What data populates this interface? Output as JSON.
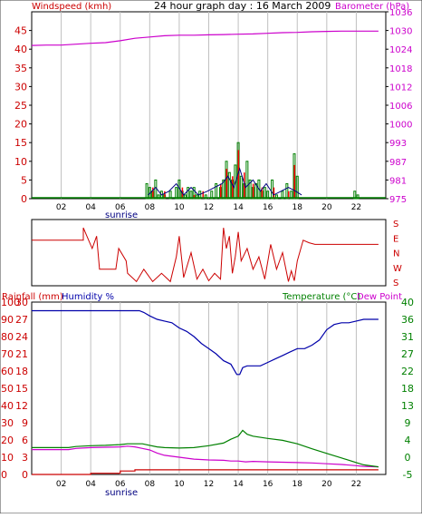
{
  "header": {
    "title": "24 hour graph day : 16 March 2009",
    "left_label": "Windspeed (kmh)",
    "right_label": "Barometer (hPa)"
  },
  "bottom_header": {
    "rain_label": "Rainfall (mm)",
    "humidity_label": "Humidity %",
    "temp_label": "Temperature (°C)",
    "dew_label": "Dew Point"
  },
  "colors": {
    "wind": "#000080",
    "gust_green": "#008000",
    "gust_red": "#ff0000",
    "baro": "#cc00cc",
    "dir": "#cc0000",
    "humidity": "#0000aa",
    "temp": "#008000",
    "dew": "#cc00cc",
    "rain": "#cc0000",
    "axis_red": "#cc0000",
    "axis_magenta": "#cc00cc",
    "axis_green": "#008000",
    "grid": "#c0c0c0"
  },
  "sunrise_label": "sunrise",
  "chart_data": [
    {
      "type": "bar",
      "name": "wind",
      "x": [
        7.8,
        8.0,
        8.2,
        8.4,
        8.6,
        8.8,
        9.0,
        9.4,
        9.8,
        10.0,
        10.2,
        10.4,
        10.6,
        10.8,
        11.0,
        11.2,
        11.4,
        11.8,
        12.2,
        12.5,
        12.8,
        13.0,
        13.2,
        13.4,
        13.6,
        13.8,
        14.0,
        14.2,
        14.4,
        14.6,
        14.8,
        15.0,
        15.2,
        15.4,
        15.6,
        15.8,
        16.0,
        16.3,
        16.6,
        17.0,
        17.3,
        17.6,
        17.8,
        18.0,
        21.9,
        22.1
      ],
      "values": [
        4,
        3,
        2,
        5,
        1,
        2,
        1,
        2,
        3,
        5,
        2,
        1,
        3,
        2,
        3,
        1,
        2,
        1,
        2,
        4,
        3,
        5,
        10,
        7,
        5,
        9,
        15,
        6,
        4,
        10,
        5,
        3,
        4,
        5,
        2,
        3,
        2,
        5,
        1,
        2,
        4,
        2,
        12,
        6,
        2,
        1
      ],
      "gust_red_x": [
        8.2,
        9.0,
        10.2,
        11.0,
        11.6,
        12.8,
        13.2,
        13.6,
        14.0,
        14.4,
        15.0,
        15.6,
        16.4,
        17.4,
        17.8
      ],
      "gust_red_values": [
        3,
        2,
        3,
        1,
        2,
        4,
        8,
        6,
        13,
        7,
        4,
        3,
        3,
        2,
        9
      ],
      "line": [
        [
          7.9,
          1
        ],
        [
          8.4,
          3
        ],
        [
          8.8,
          1
        ],
        [
          9.3,
          2
        ],
        [
          9.8,
          4
        ],
        [
          10.3,
          1
        ],
        [
          10.8,
          3
        ],
        [
          11.3,
          1
        ],
        [
          11.9,
          2
        ],
        [
          12.4,
          3
        ],
        [
          12.9,
          4
        ],
        [
          13.3,
          6
        ],
        [
          13.7,
          3
        ],
        [
          14.1,
          8
        ],
        [
          14.5,
          3
        ],
        [
          15.0,
          5
        ],
        [
          15.5,
          2
        ],
        [
          15.9,
          4
        ],
        [
          16.4,
          1
        ],
        [
          16.9,
          2
        ],
        [
          17.4,
          3
        ],
        [
          17.9,
          2
        ],
        [
          18.3,
          1
        ]
      ],
      "ylim": [
        0,
        50
      ],
      "ticks": [
        0,
        5,
        10,
        15,
        20,
        25,
        30,
        35,
        40,
        45
      ]
    },
    {
      "type": "line",
      "name": "barometer",
      "x": [
        0,
        1,
        2,
        3,
        4,
        5,
        6,
        7,
        8,
        9,
        10,
        11,
        12,
        13,
        14,
        15,
        16,
        17,
        18,
        19,
        20,
        21,
        22,
        23.5
      ],
      "values": [
        1025.2,
        1025.3,
        1025.3,
        1025.6,
        1025.9,
        1026.1,
        1026.7,
        1027.5,
        1027.9,
        1028.3,
        1028.5,
        1028.5,
        1028.6,
        1028.7,
        1028.8,
        1028.9,
        1029.1,
        1029.3,
        1029.4,
        1029.6,
        1029.7,
        1029.8,
        1029.8,
        1029.8
      ],
      "tick_labels": [
        "1036",
        "1030",
        "1024",
        "1018",
        "1012",
        "1006",
        "1000",
        "993",
        "987",
        "981",
        "975"
      ]
    },
    {
      "type": "line",
      "name": "wind_direction",
      "x": [
        0,
        3.5,
        3.5,
        4.1,
        4.4,
        4.6,
        5.7,
        5.9,
        6.4,
        6.5,
        7.1,
        7.6,
        8.2,
        8.8,
        9.4,
        9.8,
        10.0,
        10.3,
        10.8,
        11.2,
        11.6,
        12.0,
        12.4,
        12.8,
        13.0,
        13.2,
        13.4,
        13.6,
        13.8,
        14.0,
        14.2,
        14.6,
        15.0,
        15.4,
        15.8,
        16.2,
        16.6,
        17.0,
        17.4,
        17.6,
        17.8,
        18.0,
        18.4,
        18.8,
        19.2,
        20.0,
        23.5
      ],
      "values": [
        5.5,
        5.5,
        7.0,
        4.5,
        6.0,
        2.0,
        2.0,
        4.5,
        3.0,
        1.5,
        0.5,
        2.0,
        0.5,
        1.5,
        0.5,
        3.5,
        6.0,
        1.0,
        4.0,
        0.8,
        2.0,
        0.6,
        1.5,
        0.8,
        7.0,
        4.5,
        6.0,
        1.5,
        3.5,
        6.5,
        3.0,
        4.5,
        2.0,
        3.5,
        0.8,
        5.0,
        2.0,
        4.0,
        0.5,
        1.8,
        0.6,
        3.0,
        5.5,
        5.2,
        5.0,
        5.0,
        5.0
      ],
      "ylim": [
        0,
        8
      ],
      "tick_labels": [
        "S",
        "E",
        "N",
        "W",
        "S"
      ]
    },
    {
      "type": "line",
      "name": "humidity",
      "x": [
        0,
        5.5,
        6.2,
        7.0,
        7.3,
        7.6,
        8.0,
        8.5,
        9.0,
        9.5,
        10.0,
        10.5,
        11.0,
        11.5,
        12.0,
        12.5,
        13.0,
        13.5,
        13.9,
        14.1,
        14.3,
        14.6,
        15.0,
        15.5,
        16.0,
        16.5,
        17.0,
        17.5,
        18.0,
        18.5,
        19.0,
        19.5,
        20.0,
        20.5,
        21.0,
        21.5,
        22.0,
        22.5,
        23.0,
        23.5
      ],
      "values": [
        95,
        95,
        95,
        95,
        95,
        94,
        92,
        90,
        89,
        88,
        85,
        83,
        80,
        76,
        73,
        70,
        66,
        64,
        58,
        58,
        62,
        63,
        63,
        63,
        65,
        67,
        69,
        71,
        73,
        73,
        75,
        78,
        84,
        87,
        88,
        88,
        89,
        90,
        90,
        90
      ],
      "ylim": [
        0,
        100
      ],
      "ticks": [
        0,
        10,
        20,
        30,
        40,
        50,
        60,
        70,
        80,
        90,
        100
      ]
    },
    {
      "type": "line",
      "name": "temperature",
      "x": [
        0,
        2.5,
        3.0,
        4.0,
        5.0,
        6.0,
        6.5,
        7.0,
        7.5,
        8.0,
        8.5,
        9.0,
        10.0,
        11.0,
        12.0,
        13.0,
        13.5,
        14.0,
        14.3,
        14.6,
        15.0,
        16.0,
        17.0,
        18.0,
        19.0,
        20.0,
        21.0,
        22.0,
        22.5,
        23.5
      ],
      "values": [
        2.0,
        2.0,
        2.3,
        2.5,
        2.6,
        2.8,
        3.0,
        3.0,
        3.0,
        2.6,
        2.2,
        2.0,
        1.9,
        2.0,
        2.5,
        3.2,
        4.2,
        5.0,
        6.5,
        5.5,
        5.0,
        4.4,
        3.9,
        3.0,
        1.7,
        0.5,
        -0.7,
        -1.9,
        -2.5,
        -3.0
      ],
      "ylim": [
        -5,
        40
      ],
      "tick_labels": [
        "40",
        "36",
        "31",
        "27",
        "22",
        "18",
        "13",
        "9",
        "4",
        "0",
        "-5"
      ]
    },
    {
      "type": "line",
      "name": "dew_point",
      "x": [
        0,
        2.5,
        3.0,
        4.0,
        5.0,
        6.0,
        6.5,
        7.0,
        7.5,
        8.0,
        8.5,
        9.0,
        10.0,
        11.0,
        12.0,
        13.0,
        13.5,
        14.0,
        14.5,
        15.0,
        16.0,
        17.0,
        18.0,
        19.0,
        20.0,
        21.0,
        22.0,
        22.5,
        23.5
      ],
      "values": [
        1.5,
        1.5,
        1.8,
        2.0,
        2.1,
        2.2,
        2.4,
        2.2,
        1.8,
        1.4,
        0.6,
        0.0,
        -0.5,
        -1.0,
        -1.2,
        -1.3,
        -1.5,
        -1.5,
        -1.7,
        -1.6,
        -1.7,
        -1.8,
        -1.9,
        -2.0,
        -2.2,
        -2.4,
        -2.7,
        -2.9,
        -3.0
      ],
      "ylim": [
        -5,
        40
      ]
    },
    {
      "type": "line",
      "name": "rainfall",
      "x": [
        0,
        4.0,
        4.0,
        6.0,
        6.0,
        7.0,
        7.0,
        23.5
      ],
      "values": [
        0.0,
        0.0,
        0.2,
        0.2,
        0.6,
        0.6,
        0.8,
        0.8
      ],
      "ylim": [
        0,
        30
      ],
      "ticks": [
        0,
        3,
        6,
        9,
        12,
        15,
        18,
        21,
        24,
        27,
        30
      ]
    }
  ],
  "x_ticks": [
    "02",
    "04",
    "06",
    "08",
    "10",
    "12",
    "14",
    "16",
    "18",
    "20",
    "22"
  ],
  "sunrise_hour": 6.3
}
